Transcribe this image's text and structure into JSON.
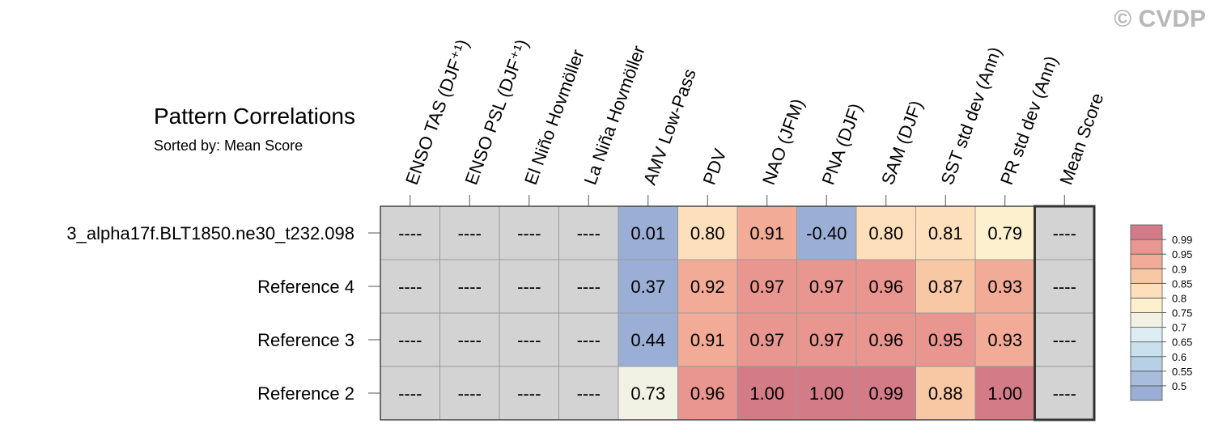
{
  "chart_data": {
    "type": "heatmap",
    "title": "Pattern Correlations",
    "subtitle": "Sorted by: Mean Score",
    "watermark": "© CVDP",
    "columns": [
      "ENSO TAS (DJF⁺¹)",
      "ENSO PSL (DJF⁺¹)",
      "El Niño Hovmöller",
      "La Niña Hovmöller",
      "AMV Low-Pass",
      "PDV",
      "NAO (JFM)",
      "PNA (DJF)",
      "SAM (DJF)",
      "SST std dev (Ann)",
      "PR std dev (Ann)",
      "Mean Score"
    ],
    "rows": [
      "3_alpha17f.BLT1850.ne30_t232.098",
      "Reference 4",
      "Reference 3",
      "Reference 2"
    ],
    "values": [
      [
        null,
        null,
        null,
        null,
        0.01,
        0.8,
        0.91,
        -0.4,
        0.8,
        0.81,
        0.79,
        null
      ],
      [
        null,
        null,
        null,
        null,
        0.37,
        0.92,
        0.97,
        0.97,
        0.96,
        0.87,
        0.93,
        null
      ],
      [
        null,
        null,
        null,
        null,
        0.44,
        0.91,
        0.97,
        0.97,
        0.96,
        0.95,
        0.93,
        null
      ],
      [
        null,
        null,
        null,
        null,
        0.73,
        0.96,
        1.0,
        1.0,
        0.99,
        0.88,
        1.0,
        null
      ]
    ],
    "value_labels": [
      [
        "----",
        "----",
        "----",
        "----",
        "0.01",
        "0.80",
        "0.91",
        "-0.40",
        "0.80",
        "0.81",
        "0.79",
        "----"
      ],
      [
        "----",
        "----",
        "----",
        "----",
        "0.37",
        "0.92",
        "0.97",
        "0.97",
        "0.96",
        "0.87",
        "0.93",
        "----"
      ],
      [
        "----",
        "----",
        "----",
        "----",
        "0.44",
        "0.91",
        "0.97",
        "0.97",
        "0.96",
        "0.95",
        "0.93",
        "----"
      ],
      [
        "----",
        "----",
        "----",
        "----",
        "0.73",
        "0.96",
        "1.00",
        "1.00",
        "0.99",
        "0.88",
        "1.00",
        "----"
      ]
    ],
    "missing_color": "#d3d3d3",
    "colorbar_levels": [
      0.5,
      0.55,
      0.6,
      0.65,
      0.7,
      0.75,
      0.8,
      0.85,
      0.9,
      0.95,
      0.99
    ],
    "colorbar_colors": [
      "#9aaed6",
      "#a8bddc",
      "#b6d0e6",
      "#c9e1ed",
      "#ddedf3",
      "#f2f2e4",
      "#fdf0cf",
      "#fde0bb",
      "#f8c7a4",
      "#f1ab96",
      "#e8968f",
      "#d47b88"
    ]
  }
}
